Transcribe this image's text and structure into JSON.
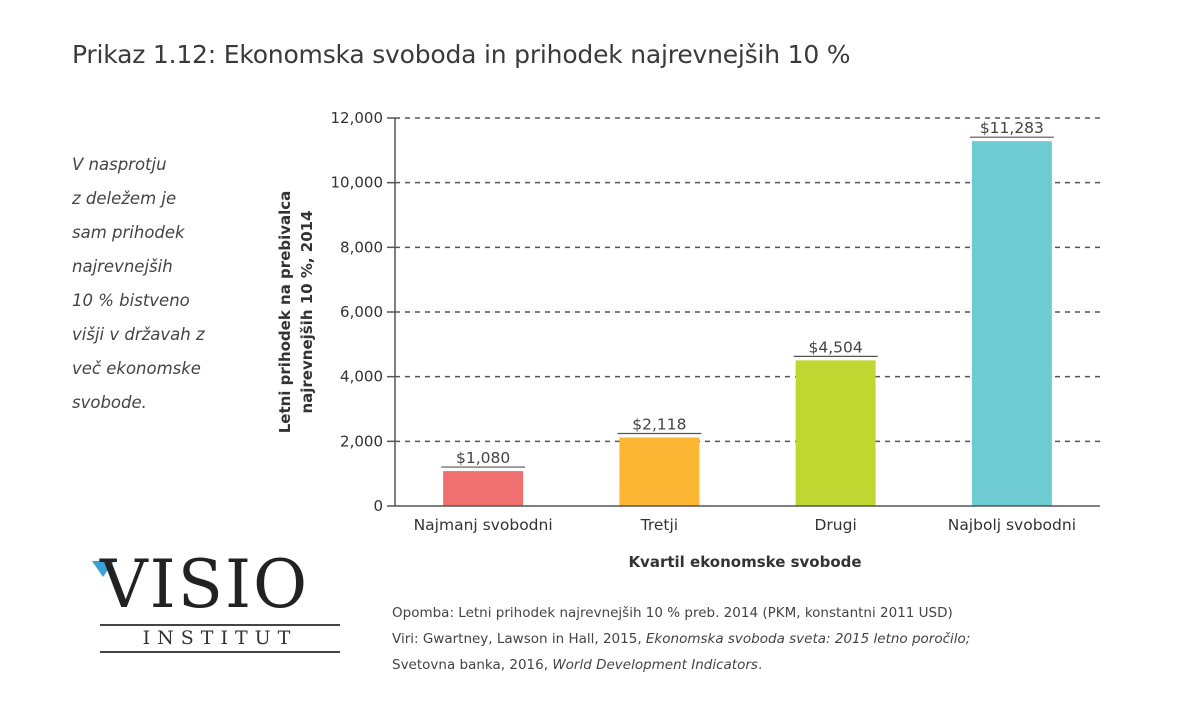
{
  "title": "Prikaz 1.12: Ekonomska svoboda in prihodek najrevnejših 10 %",
  "side_note": [
    "V nasprotju",
    "z deležem je",
    "sam prihodek",
    "najrevnejših",
    "10 % bistveno",
    "višji v državah z",
    "več ekonomske",
    "svobode."
  ],
  "chart_data": {
    "type": "bar",
    "categories": [
      "Najmanj svobodni",
      "Tretji",
      "Drugi",
      "Najbolj svobodni"
    ],
    "values": [
      1080,
      2118,
      4504,
      11283
    ],
    "value_labels": [
      "$1,080",
      "$2,118",
      "$4,504",
      "$11,283"
    ],
    "colors": [
      "#f07070",
      "#fbb634",
      "#bfd730",
      "#6dcbd1"
    ],
    "ylim": [
      0,
      12000
    ],
    "yticks": [
      0,
      2000,
      4000,
      6000,
      8000,
      10000,
      12000
    ],
    "ytick_labels": [
      "0",
      "2,000",
      "4,000",
      "6,000",
      "8,000",
      "10,000",
      "12,000"
    ],
    "ylabel_lines": [
      "Letni prihodek na prebivalca",
      "najrevnejših 10 %, 2014"
    ],
    "xlabel": "Kvartil ekonomske svobode",
    "grid": "dashed horizontal"
  },
  "logo": {
    "word": "VISIO",
    "sub": "INSTITUT"
  },
  "footnotes": {
    "line1": "Opomba: Letni prihodek najrevnejših 10 % preb. 2014 (PKM, konstantni 2011 USD)",
    "line2_pre": "Viri: Gwartney, Lawson in Hall, 2015, ",
    "line2_em": "Ekonomska svoboda sveta: 2015 letno poročilo;",
    "line3_pre": "Svetovna banka, 2016, ",
    "line3_em": "World Development Indicators",
    "line3_post": "."
  }
}
